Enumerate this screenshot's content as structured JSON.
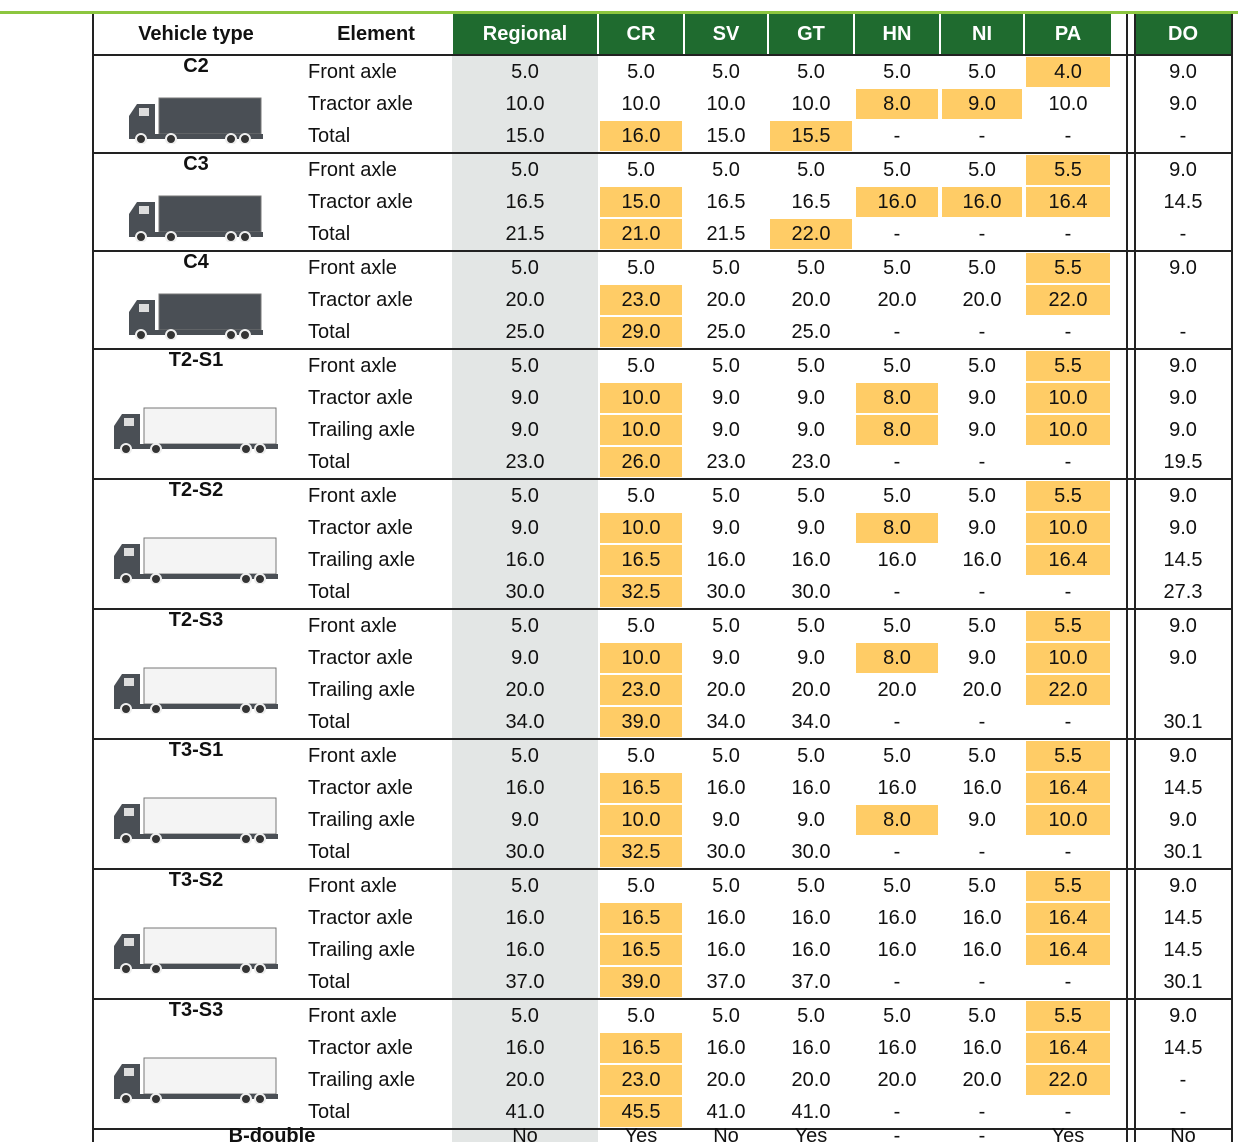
{
  "header": [
    "Vehicle type",
    "Element",
    "Regional",
    "CR",
    "SV",
    "GT",
    "HN",
    "NI",
    "PA",
    "DO"
  ],
  "groups": [
    {
      "name": "C2",
      "rows": [
        {
          "element": "Front axle",
          "values": [
            "5.0",
            "5.0",
            "5.0",
            "5.0",
            "5.0",
            "5.0",
            "4.0",
            "9.0"
          ]
        },
        {
          "element": "Tractor axle",
          "values": [
            "10.0",
            "10.0",
            "10.0",
            "10.0",
            "8.0",
            "9.0",
            "10.0",
            "9.0"
          ]
        },
        {
          "element": "Total",
          "values": [
            "15.0",
            "16.0",
            "15.0",
            "15.5",
            "-",
            "-",
            "-",
            "-"
          ]
        }
      ]
    },
    {
      "name": "C3",
      "rows": [
        {
          "element": "Front axle",
          "values": [
            "5.0",
            "5.0",
            "5.0",
            "5.0",
            "5.0",
            "5.0",
            "5.5",
            "9.0"
          ]
        },
        {
          "element": "Tractor axle",
          "values": [
            "16.5",
            "15.0",
            "16.5",
            "16.5",
            "16.0",
            "16.0",
            "16.4",
            "14.5"
          ]
        },
        {
          "element": "Total",
          "values": [
            "21.5",
            "21.0",
            "21.5",
            "22.0",
            "-",
            "-",
            "-",
            "-"
          ]
        }
      ]
    },
    {
      "name": "C4",
      "rows": [
        {
          "element": "Front axle",
          "values": [
            "5.0",
            "5.0",
            "5.0",
            "5.0",
            "5.0",
            "5.0",
            "5.5",
            "9.0"
          ]
        },
        {
          "element": "Tractor axle",
          "values": [
            "20.0",
            "23.0",
            "20.0",
            "20.0",
            "20.0",
            "20.0",
            "22.0",
            null
          ]
        },
        {
          "element": "Total",
          "values": [
            "25.0",
            "29.0",
            "25.0",
            "25.0",
            "-",
            "-",
            "-",
            "-"
          ]
        }
      ]
    },
    {
      "name": "T2-S1",
      "rows": [
        {
          "element": "Front axle",
          "values": [
            "5.0",
            "5.0",
            "5.0",
            "5.0",
            "5.0",
            "5.0",
            "5.5",
            "9.0"
          ]
        },
        {
          "element": "Tractor axle",
          "values": [
            "9.0",
            "10.0",
            "9.0",
            "9.0",
            "8.0",
            "9.0",
            "10.0",
            "9.0"
          ]
        },
        {
          "element": "Trailing axle",
          "values": [
            "9.0",
            "10.0",
            "9.0",
            "9.0",
            "8.0",
            "9.0",
            "10.0",
            "9.0"
          ]
        },
        {
          "element": "Total",
          "values": [
            "23.0",
            "26.0",
            "23.0",
            "23.0",
            "-",
            "-",
            "-",
            "19.5"
          ]
        }
      ]
    },
    {
      "name": "T2-S2",
      "rows": [
        {
          "element": "Front axle",
          "values": [
            "5.0",
            "5.0",
            "5.0",
            "5.0",
            "5.0",
            "5.0",
            "5.5",
            "9.0"
          ]
        },
        {
          "element": "Tractor axle",
          "values": [
            "9.0",
            "10.0",
            "9.0",
            "9.0",
            "8.0",
            "9.0",
            "10.0",
            "9.0"
          ]
        },
        {
          "element": "Trailing axle",
          "values": [
            "16.0",
            "16.5",
            "16.0",
            "16.0",
            "16.0",
            "16.0",
            "16.4",
            "14.5"
          ]
        },
        {
          "element": "Total",
          "values": [
            "30.0",
            "32.5",
            "30.0",
            "30.0",
            "-",
            "-",
            "-",
            "27.3"
          ]
        }
      ]
    },
    {
      "name": "T2-S3",
      "rows": [
        {
          "element": "Front axle",
          "values": [
            "5.0",
            "5.0",
            "5.0",
            "5.0",
            "5.0",
            "5.0",
            "5.5",
            "9.0"
          ]
        },
        {
          "element": "Tractor axle",
          "values": [
            "9.0",
            "10.0",
            "9.0",
            "9.0",
            "8.0",
            "9.0",
            "10.0",
            "9.0"
          ]
        },
        {
          "element": "Trailing axle",
          "values": [
            "20.0",
            "23.0",
            "20.0",
            "20.0",
            "20.0",
            "20.0",
            "22.0",
            null
          ]
        },
        {
          "element": "Total",
          "values": [
            "34.0",
            "39.0",
            "34.0",
            "34.0",
            "-",
            "-",
            "-",
            "30.1"
          ]
        }
      ]
    },
    {
      "name": "T3-S1",
      "rows": [
        {
          "element": "Front axle",
          "values": [
            "5.0",
            "5.0",
            "5.0",
            "5.0",
            "5.0",
            "5.0",
            "5.5",
            "9.0"
          ]
        },
        {
          "element": "Tractor axle",
          "values": [
            "16.0",
            "16.5",
            "16.0",
            "16.0",
            "16.0",
            "16.0",
            "16.4",
            "14.5"
          ]
        },
        {
          "element": "Trailing axle",
          "values": [
            "9.0",
            "10.0",
            "9.0",
            "9.0",
            "8.0",
            "9.0",
            "10.0",
            "9.0"
          ]
        },
        {
          "element": "Total",
          "values": [
            "30.0",
            "32.5",
            "30.0",
            "30.0",
            "-",
            "-",
            "-",
            "30.1"
          ]
        }
      ]
    },
    {
      "name": "T3-S2",
      "rows": [
        {
          "element": "Front axle",
          "values": [
            "5.0",
            "5.0",
            "5.0",
            "5.0",
            "5.0",
            "5.0",
            "5.5",
            "9.0"
          ]
        },
        {
          "element": "Tractor axle",
          "values": [
            "16.0",
            "16.5",
            "16.0",
            "16.0",
            "16.0",
            "16.0",
            "16.4",
            "14.5"
          ]
        },
        {
          "element": "Trailing axle",
          "values": [
            "16.0",
            "16.5",
            "16.0",
            "16.0",
            "16.0",
            "16.0",
            "16.4",
            "14.5"
          ]
        },
        {
          "element": "Total",
          "values": [
            "37.0",
            "39.0",
            "37.0",
            "37.0",
            "-",
            "-",
            "-",
            "30.1"
          ]
        }
      ]
    },
    {
      "name": "T3-S3",
      "rows": [
        {
          "element": "Front axle",
          "values": [
            "5.0",
            "5.0",
            "5.0",
            "5.0",
            "5.0",
            "5.0",
            "5.5",
            "9.0"
          ]
        },
        {
          "element": "Tractor axle",
          "values": [
            "16.0",
            "16.5",
            "16.0",
            "16.0",
            "16.0",
            "16.0",
            "16.4",
            "14.5"
          ]
        },
        {
          "element": "Trailing axle",
          "values": [
            "20.0",
            "23.0",
            "20.0",
            "20.0",
            "20.0",
            "20.0",
            "22.0",
            "-"
          ]
        },
        {
          "element": "Total",
          "values": [
            "41.0",
            "45.5",
            "41.0",
            "41.0",
            "-",
            "-",
            "-",
            "-"
          ]
        }
      ]
    }
  ],
  "footer": {
    "label": "B-double",
    "values": [
      "No",
      "Yes",
      "No",
      "Yes",
      "-",
      "-",
      "Yes",
      "No"
    ]
  }
}
